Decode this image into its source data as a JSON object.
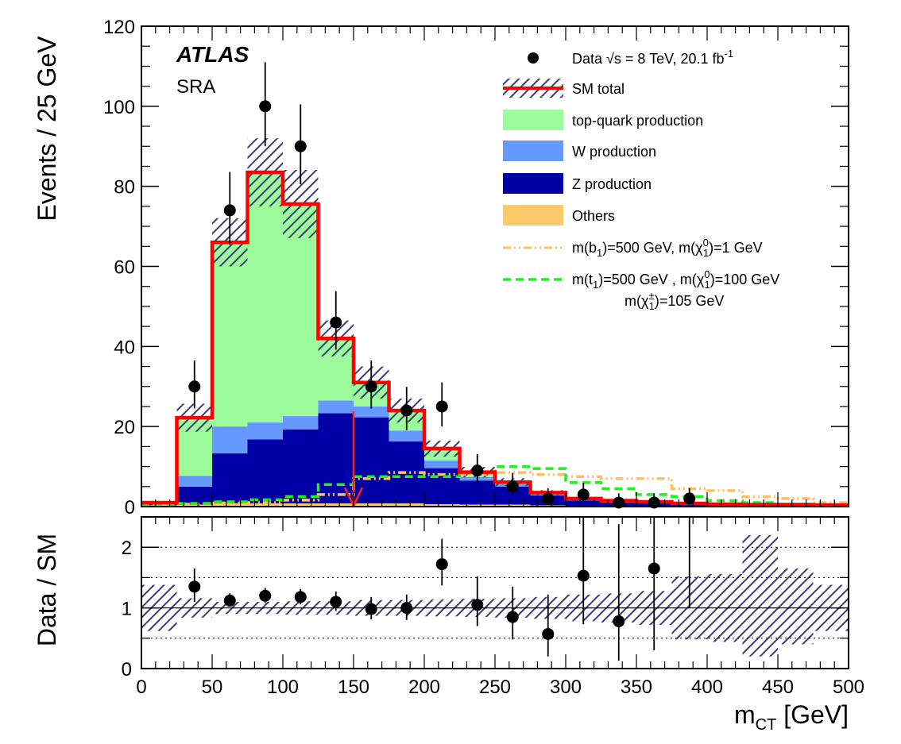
{
  "chart_data": [
    {
      "type": "bar",
      "panel": "main",
      "experiment_label": "ATLAS",
      "region_label": "SRA",
      "xlabel": "m",
      "xlabel_subscript": "CT",
      "xlabel_unit": " [GeV]",
      "ylabel": "Events / 25 GeV",
      "xlim": [
        0,
        500
      ],
      "ylim": [
        0,
        120
      ],
      "x_ticks": [
        "0",
        "50",
        "100",
        "150",
        "200",
        "250",
        "300",
        "350",
        "400",
        "450",
        "500"
      ],
      "y_ticks": [
        "0",
        "20",
        "40",
        "60",
        "80",
        "100",
        "120"
      ],
      "bin_width": 25,
      "bin_low_edges": [
        0,
        25,
        50,
        75,
        100,
        125,
        150,
        175,
        200,
        225,
        250,
        275,
        300,
        325,
        350,
        375,
        400,
        425,
        450,
        475
      ],
      "stack": [
        {
          "name": "Others",
          "color": "#fdca6b",
          "values": [
            0.3,
            0.5,
            0.8,
            0.8,
            0.8,
            0.8,
            0.8,
            0.8,
            0.6,
            0.5,
            0.5,
            0.3,
            0.2,
            0.2,
            0.2,
            0.1,
            0.1,
            0.1,
            0.1,
            0.1
          ]
        },
        {
          "name": "Z production",
          "color": "#0000a6",
          "values": [
            0.4,
            4.5,
            12.5,
            16.0,
            18.5,
            22.5,
            21.5,
            15.5,
            9.0,
            6.0,
            4.5,
            2.5,
            1.3,
            0.8,
            0.6,
            0.4,
            0.3,
            0.2,
            0.2,
            0.1
          ]
        },
        {
          "name": "W production",
          "color": "#6699ff",
          "values": [
            0.1,
            2.7,
            6.7,
            4.2,
            3.3,
            3.2,
            2.7,
            2.7,
            1.9,
            0.9,
            0.6,
            0.4,
            0.3,
            0.2,
            0.2,
            0.1,
            0.1,
            0.1,
            0.1,
            0.1
          ]
        },
        {
          "name": "top-quark production",
          "color": "#9cfc9c",
          "values": [
            0.2,
            14.5,
            46.0,
            62.5,
            53.0,
            15.5,
            6.0,
            5.0,
            3.0,
            1.2,
            0.5,
            0.3,
            0.2,
            0.3,
            0.2,
            0.2,
            0.1,
            0.1,
            0.1,
            0.1
          ]
        }
      ],
      "sm_total": {
        "name": "SM total",
        "color": "#ff0000",
        "values": [
          1.0,
          22.2,
          66.0,
          83.5,
          75.6,
          42.0,
          31.0,
          24.0,
          14.5,
          8.6,
          6.1,
          3.5,
          2.0,
          1.5,
          1.2,
          0.8,
          0.6,
          0.5,
          0.5,
          0.4
        ]
      },
      "sm_uncertainty": [
        0.35,
        3.5,
        6.0,
        8.5,
        8.5,
        4.5,
        4.0,
        3.0,
        2.0,
        1.3,
        1.0,
        0.6,
        0.4,
        0.3,
        0.3,
        0.25,
        0.2,
        0.2,
        0.15,
        0.15
      ],
      "signals": [
        {
          "name": "b1 500 GeV, neutralino 1 GeV",
          "color": "#fdc064",
          "style": "dash-dot",
          "values": [
            0.4,
            0.6,
            0.9,
            1.0,
            1.6,
            3.0,
            7.0,
            8.5,
            8.0,
            8.0,
            8.5,
            8.0,
            7.5,
            7.0,
            7.0,
            4.5,
            4.0,
            2.5,
            2.0,
            1.0
          ]
        },
        {
          "name": "t1 500 GeV, neutralino 100 GeV, chargino 105 GeV",
          "color": "#22ee22",
          "style": "dashed",
          "values": [
            0.3,
            0.8,
            1.2,
            1.7,
            2.5,
            5.5,
            7.5,
            7.5,
            7.5,
            8.5,
            10.0,
            9.5,
            6.0,
            4.5,
            3.0,
            2.5,
            1.5,
            1.0,
            0.6,
            0.3
          ]
        }
      ],
      "data": {
        "name": "Data",
        "x": [
          37.5,
          62.5,
          87.5,
          112.5,
          137.5,
          162.5,
          187.5,
          212.5,
          237.5,
          262.5,
          287.5,
          312.5,
          337.5,
          362.5,
          387.5
        ],
        "y": [
          30,
          74,
          100,
          90,
          46,
          30,
          24,
          25,
          9,
          5,
          2,
          3,
          1,
          1,
          2
        ],
        "err_low": [
          5.5,
          8.6,
          10.0,
          9.5,
          6.8,
          5.5,
          4.9,
          5.0,
          3.0,
          2.2,
          1.3,
          1.6,
          0.8,
          0.8,
          1.3
        ],
        "err_high": [
          6.5,
          9.6,
          11.0,
          10.5,
          7.8,
          6.5,
          5.9,
          6.0,
          4.1,
          3.4,
          2.6,
          2.9,
          2.3,
          2.3,
          2.6
        ]
      },
      "cut_arrow_x": 150
    },
    {
      "type": "scatter",
      "panel": "ratio",
      "ylabel": "Data / SM",
      "xlim": [
        0,
        500
      ],
      "ylim": [
        0,
        2.5
      ],
      "y_ticks": [
        "0",
        "1",
        "2"
      ],
      "reference_lines": [
        0.5,
        1.0,
        1.5,
        2.0
      ],
      "uncertainty_band": {
        "low": [
          0.62,
          0.84,
          0.9,
          0.9,
          0.89,
          0.89,
          0.87,
          0.87,
          0.86,
          0.85,
          0.84,
          0.82,
          0.78,
          0.76,
          0.72,
          0.48,
          0.44,
          0.2,
          0.4,
          0.62
        ],
        "high": [
          1.38,
          1.16,
          1.1,
          1.1,
          1.11,
          1.11,
          1.13,
          1.13,
          1.14,
          1.15,
          1.16,
          1.18,
          1.22,
          1.24,
          1.28,
          1.52,
          1.56,
          2.2,
          1.65,
          1.38
        ]
      },
      "points": {
        "x": [
          37.5,
          62.5,
          87.5,
          112.5,
          137.5,
          162.5,
          187.5,
          212.5,
          237.5,
          262.5,
          287.5,
          312.5,
          337.5,
          362.5
        ],
        "y": [
          1.35,
          1.12,
          1.2,
          1.18,
          1.1,
          0.98,
          1.0,
          1.72,
          1.05,
          0.85,
          0.57,
          1.53,
          0.78,
          1.65
        ],
        "err_low": [
          0.25,
          0.1,
          0.12,
          0.12,
          0.15,
          0.17,
          0.2,
          0.35,
          0.35,
          0.37,
          0.37,
          0.8,
          0.65,
          1.35
        ],
        "err_high": [
          0.3,
          0.12,
          0.13,
          0.13,
          0.17,
          0.2,
          0.22,
          0.42,
          0.47,
          0.5,
          0.65,
          1.3,
          1.6,
          1.6
        ]
      },
      "open_arrows_x": [
        387.5
      ]
    }
  ],
  "legend": {
    "data_prefix": "Data ",
    "data_sqrt": "√s",
    "data_main": " = 8 TeV, 20.1 fb",
    "data_sup": "-1",
    "sm_total": "SM total",
    "top": "top-quark production",
    "w": "W production",
    "z": "Z production",
    "others": "Others",
    "sig1_a": "m(",
    "sig1_b": "b",
    "sig1_b_sub": "1",
    "sig1_c": ")=500 GeV, m(",
    "sig1_d": "χ",
    "sig1_d_sup": "0",
    "sig1_d_sub": "1",
    "sig1_e": ")=1 GeV",
    "sig2_a": "m(",
    "sig2_b": "t",
    "sig2_b_sub": "1",
    "sig2_c": ")=500 GeV , m(",
    "sig2_d": "χ",
    "sig2_d_sup": "0",
    "sig2_d_sub": "1",
    "sig2_e": ")=100 GeV",
    "sig2b_a": "m(",
    "sig2b_b": "χ",
    "sig2b_b_sup": "±",
    "sig2b_b_sub": "1",
    "sig2b_c": ")=105 GeV"
  }
}
